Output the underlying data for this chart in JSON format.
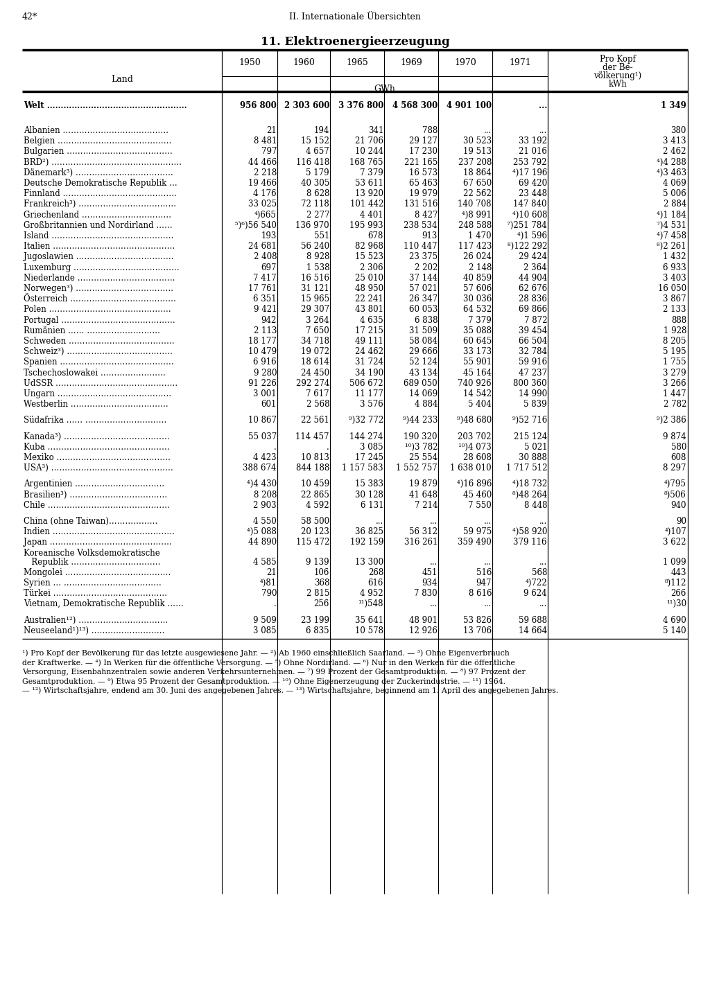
{
  "page_number": "42*",
  "section_header": "II. Internationale Übersichten",
  "title": "11. Elektroenergieerzeugung",
  "footnotes": [
    "¹) Pro Kopf der Bevölkerung für das letzte ausgewiesene Jahr. — ²) Ab 1960 einschließlich Saarland. — ³) Ohne Eigenverbrauch",
    "der Kraftwerke. — ⁴) In Werken für die öffentliche Versorgung. — ⁵) Ohne Nordirland. — ⁶) Nur in den Werken für die öffentliche",
    "Versorgung, Eisenbahnzentralen sowie anderen Verkehrsunternehmen. — ⁷) 99 Prozent der Gesamtproduktion. — ⁸) 97 Prozent der",
    "Gesamtproduktion. — ⁹) Etwa 95 Prozent der Gesamtproduktion. — ¹⁰) Ohne Eigenerzeugung der Zuckerindustrie. — ¹¹) 1964.",
    "— ¹²) Wirtschaftsjahre, endend am 30. Juni des angegebenen Jahres. — ¹³) Wirtschaftsjahre, beginnend am 1. April des angegebenen Jahres."
  ],
  "rows": [
    {
      "land": "Welt ……………………………………………",
      "v1950": "956 800",
      "v1960": "2 303 600",
      "v1965": "3 376 800",
      "v1969": "4 568 300",
      "v1970": "4 901 100",
      "v1971": "...",
      "vkopf": "1 349",
      "bold": true,
      "sep_before": false,
      "sep_after": true
    },
    {
      "land": "Albanien …………………………………",
      "v1950": "21",
      "v1960": "194",
      "v1965": "341",
      "v1969": "788",
      "v1970": "...",
      "v1971": "...",
      "vkopf": "380",
      "bold": false,
      "sep_before": false,
      "sep_after": false
    },
    {
      "land": "Belgien ……………………………………",
      "v1950": "8 481",
      "v1960": "15 152",
      "v1965": "21 706",
      "v1969": "29 127",
      "v1970": "30 523",
      "v1971": "33 192",
      "vkopf": "3 413",
      "bold": false,
      "sep_before": false,
      "sep_after": false
    },
    {
      "land": "Bulgarien …………………………………",
      "v1950": "797",
      "v1960": "4 657",
      "v1965": "10 244",
      "v1969": "17 230",
      "v1970": "19 513",
      "v1971": "21 016",
      "vkopf": "2 462",
      "bold": false,
      "sep_before": false,
      "sep_after": false
    },
    {
      "land": "BRD²) …………………………………………",
      "v1950": "44 466",
      "v1960": "116 418",
      "v1965": "168 765",
      "v1969": "221 165",
      "v1970": "237 208",
      "v1971": "253 792",
      "vkopf": "⁴)4 288",
      "bold": false,
      "sep_before": false,
      "sep_after": false
    },
    {
      "land": "Dänemark³) ………………………………",
      "v1950": "2 218",
      "v1960": "5 179",
      "v1965": "7 379",
      "v1969": "16 573",
      "v1970": "18 864",
      "v1971": "⁴)17 196",
      "vkopf": "⁴)3 463",
      "bold": false,
      "sep_before": false,
      "sep_after": false
    },
    {
      "land": "Deutsche Demokratische Republik …",
      "v1950": "19 466",
      "v1960": "40 305",
      "v1965": "53 611",
      "v1969": "65 463",
      "v1970": "67 650",
      "v1971": "69 420",
      "vkopf": "4 069",
      "bold": false,
      "sep_before": false,
      "sep_after": false
    },
    {
      "land": "Finnland ……………………………………",
      "v1950": "4 176",
      "v1960": "8 628",
      "v1965": "13 920",
      "v1969": "19 979",
      "v1970": "22 562",
      "v1971": "23 448",
      "vkopf": "5 006",
      "bold": false,
      "sep_before": false,
      "sep_after": false
    },
    {
      "land": "Frankreich³) ………………………………",
      "v1950": "33 025",
      "v1960": "72 118",
      "v1965": "101 442",
      "v1969": "131 516",
      "v1970": "140 708",
      "v1971": "147 840",
      "vkopf": "2 884",
      "bold": false,
      "sep_before": false,
      "sep_after": false
    },
    {
      "land": "Griechenland ……………………………",
      "v1950": "⁴)665",
      "v1960": "2 277",
      "v1965": "4 401",
      "v1969": "8 427",
      "v1970": "⁴)8 991",
      "v1971": "⁴)10 608",
      "vkopf": "⁴)1 184",
      "bold": false,
      "sep_before": false,
      "sep_after": false
    },
    {
      "land": "Großbritannien und Nordirland ……",
      "v1950": "⁵)⁶)56 540",
      "v1960": "136 970",
      "v1965": "195 993",
      "v1969": "238 534",
      "v1970": "248 588",
      "v1971": "⁷)251 784",
      "vkopf": "⁷)4 531",
      "bold": false,
      "sep_before": false,
      "sep_after": false
    },
    {
      "land": "Island ………………………………………",
      "v1950": "193",
      "v1960": "551",
      "v1965": "678",
      "v1969": "913",
      "v1970": "1 470",
      "v1971": "⁴)1 596",
      "vkopf": "⁴)7 458",
      "bold": false,
      "sep_before": false,
      "sep_after": false
    },
    {
      "land": "Italien ………………………………………",
      "v1950": "24 681",
      "v1960": "56 240",
      "v1965": "82 968",
      "v1969": "110 447",
      "v1970": "117 423",
      "v1971": "⁸)122 292",
      "vkopf": "⁸)2 261",
      "bold": false,
      "sep_before": false,
      "sep_after": false
    },
    {
      "land": "Jugoslawien ………………………………",
      "v1950": "2 408",
      "v1960": "8 928",
      "v1965": "15 523",
      "v1969": "23 375",
      "v1970": "26 024",
      "v1971": "29 424",
      "vkopf": "1 432",
      "bold": false,
      "sep_before": false,
      "sep_after": false
    },
    {
      "land": "Luxemburg …………………………………",
      "v1950": "697",
      "v1960": "1 538",
      "v1965": "2 306",
      "v1969": "2 202",
      "v1970": "2 148",
      "v1971": "2 364",
      "vkopf": "6 933",
      "bold": false,
      "sep_before": false,
      "sep_after": false
    },
    {
      "land": "Niederlande ………………………………",
      "v1950": "7 417",
      "v1960": "16 516",
      "v1965": "25 010",
      "v1969": "37 144",
      "v1970": "40 859",
      "v1971": "44 904",
      "vkopf": "3 403",
      "bold": false,
      "sep_before": false,
      "sep_after": false
    },
    {
      "land": "Norwegen³) ………………………………",
      "v1950": "17 761",
      "v1960": "31 121",
      "v1965": "48 950",
      "v1969": "57 021",
      "v1970": "57 606",
      "v1971": "62 676",
      "vkopf": "16 050",
      "bold": false,
      "sep_before": false,
      "sep_after": false
    },
    {
      "land": "Österreich …………………………………",
      "v1950": "6 351",
      "v1960": "15 965",
      "v1965": "22 241",
      "v1969": "26 347",
      "v1970": "30 036",
      "v1971": "28 836",
      "vkopf": "3 867",
      "bold": false,
      "sep_before": false,
      "sep_after": false
    },
    {
      "land": "Polen ………………………………………",
      "v1950": "9 421",
      "v1960": "29 307",
      "v1965": "43 801",
      "v1969": "60 053",
      "v1970": "64 532",
      "v1971": "69 866",
      "vkopf": "2 133",
      "bold": false,
      "sep_before": false,
      "sep_after": false
    },
    {
      "land": "Portugal ……………………………………",
      "v1950": "942",
      "v1960": "3 264",
      "v1965": "4 635",
      "v1969": "6 838",
      "v1970": "7 379",
      "v1971": "7 872",
      "vkopf": "888",
      "bold": false,
      "sep_before": false,
      "sep_after": false
    },
    {
      "land": "Rumänien …… ………………………",
      "v1950": "2 113",
      "v1960": "7 650",
      "v1965": "17 215",
      "v1969": "31 509",
      "v1970": "35 088",
      "v1971": "39 454",
      "vkopf": "1 928",
      "bold": false,
      "sep_before": false,
      "sep_after": false
    },
    {
      "land": "Schweden …………………………………",
      "v1950": "18 177",
      "v1960": "34 718",
      "v1965": "49 111",
      "v1969": "58 084",
      "v1970": "60 645",
      "v1971": "66 504",
      "vkopf": "8 205",
      "bold": false,
      "sep_before": false,
      "sep_after": false
    },
    {
      "land": "Schweiz³) …………………………………",
      "v1950": "10 479",
      "v1960": "19 072",
      "v1965": "24 462",
      "v1969": "29 666",
      "v1970": "33 173",
      "v1971": "32 784",
      "vkopf": "5 195",
      "bold": false,
      "sep_before": false,
      "sep_after": false
    },
    {
      "land": "Spanien ……………………………………",
      "v1950": "6 916",
      "v1960": "18 614",
      "v1965": "31 724",
      "v1969": "52 124",
      "v1970": "55 901",
      "v1971": "59 916",
      "vkopf": "1 755",
      "bold": false,
      "sep_before": false,
      "sep_after": false
    },
    {
      "land": "Tschechoslowakei ……………………",
      "v1950": "9 280",
      "v1960": "24 450",
      "v1965": "34 190",
      "v1969": "43 134",
      "v1970": "45 164",
      "v1971": "47 237",
      "vkopf": "3 279",
      "bold": false,
      "sep_before": false,
      "sep_after": false
    },
    {
      "land": "UdSSR ………………………………………",
      "v1950": "91 226",
      "v1960": "292 274",
      "v1965": "506 672",
      "v1969": "689 050",
      "v1970": "740 926",
      "v1971": "800 360",
      "vkopf": "3 266",
      "bold": false,
      "sep_before": false,
      "sep_after": false
    },
    {
      "land": "Ungarn ……………………………………",
      "v1950": "3 001",
      "v1960": "7 617",
      "v1965": "11 177",
      "v1969": "14 069",
      "v1970": "14 542",
      "v1971": "14 990",
      "vkopf": "1 447",
      "bold": false,
      "sep_before": false,
      "sep_after": false
    },
    {
      "land": "Westberlin ………………………………",
      "v1950": "601",
      "v1960": "2 568",
      "v1965": "3 576",
      "v1969": "4 884",
      "v1970": "5 404",
      "v1971": "5 839",
      "vkopf": "2 782",
      "bold": false,
      "sep_before": false,
      "sep_after": true
    },
    {
      "land": "Südafrika …… …………………………",
      "v1950": "10 867",
      "v1960": "22 561",
      "v1965": "⁹)32 772",
      "v1969": "⁹)44 233",
      "v1970": "⁹)48 680",
      "v1971": "⁹)52 716",
      "vkopf": "⁹)2 386",
      "bold": false,
      "sep_before": false,
      "sep_after": true
    },
    {
      "land": "Kanada³) …………………………………",
      "v1950": "55 037",
      "v1960": "114 457",
      "v1965": "144 274",
      "v1969": "190 320",
      "v1970": "203 702",
      "v1971": "215 124",
      "vkopf": "9 874",
      "bold": false,
      "sep_before": false,
      "sep_after": false
    },
    {
      "land": "Kuba ………………………………………",
      "v1950": ".",
      "v1960": ".",
      "v1965": "3 085",
      "v1969": "¹⁰)3 782",
      "v1970": "¹⁰)4 073",
      "v1971": "5 021",
      "vkopf": "580",
      "bold": false,
      "sep_before": false,
      "sep_after": false
    },
    {
      "land": "Mexiko ……………………………………",
      "v1950": "4 423",
      "v1960": "10 813",
      "v1965": "17 245",
      "v1969": "25 554",
      "v1970": "28 608",
      "v1971": "30 888",
      "vkopf": "608",
      "bold": false,
      "sep_before": false,
      "sep_after": false
    },
    {
      "land": "USA³) ………………………………………",
      "v1950": "388 674",
      "v1960": "844 188",
      "v1965": "1 157 583",
      "v1969": "1 552 757",
      "v1970": "1 638 010",
      "v1971": "1 717 512",
      "vkopf": "8 297",
      "bold": false,
      "sep_before": false,
      "sep_after": true
    },
    {
      "land": "Argentinien ……………………………",
      "v1950": "⁴)4 430",
      "v1960": "10 459",
      "v1965": "15 383",
      "v1969": "19 879",
      "v1970": "⁴)16 896",
      "v1971": "⁴)18 732",
      "vkopf": "⁴)795",
      "bold": false,
      "sep_before": false,
      "sep_after": false
    },
    {
      "land": "Brasilien³) ………………………………",
      "v1950": "8 208",
      "v1960": "22 865",
      "v1965": "30 128",
      "v1969": "41 648",
      "v1970": "45 460",
      "v1971": "⁸)48 264",
      "vkopf": "⁸)506",
      "bold": false,
      "sep_before": false,
      "sep_after": false
    },
    {
      "land": "Chile ………………………………………",
      "v1950": "2 903",
      "v1960": "4 592",
      "v1965": "6 131",
      "v1969": "7 214",
      "v1970": "7 550",
      "v1971": "8 448",
      "vkopf": "940",
      "bold": false,
      "sep_before": false,
      "sep_after": true
    },
    {
      "land": "China (ohne Taiwan)………………",
      "v1950": "4 550",
      "v1960": "58 500",
      "v1965": "...",
      "v1969": "...",
      "v1970": "...",
      "v1971": "...",
      "vkopf": "90",
      "bold": false,
      "sep_before": false,
      "sep_after": false
    },
    {
      "land": "Indien ………………………………………",
      "v1950": "⁴)5 088",
      "v1960": "20 123",
      "v1965": "36 825",
      "v1969": "56 312",
      "v1970": "59 975",
      "v1971": "⁴)58 920",
      "vkopf": "⁴)107",
      "bold": false,
      "sep_before": false,
      "sep_after": false
    },
    {
      "land": "Japan ………………………………………",
      "v1950": "44 890",
      "v1960": "115 472",
      "v1965": "192 159",
      "v1969": "316 261",
      "v1970": "359 490",
      "v1971": "379 116",
      "vkopf": "3 622",
      "bold": false,
      "sep_before": false,
      "sep_after": false
    },
    {
      "land": "Koreanische Volksdemokratische",
      "v1950": "",
      "v1960": "",
      "v1965": "",
      "v1969": "",
      "v1970": "",
      "v1971": "",
      "vkopf": "",
      "bold": false,
      "sep_before": false,
      "sep_after": false,
      "multiline": true
    },
    {
      "land": "   Republik ……………………………",
      "v1950": "4 585",
      "v1960": "9 139",
      "v1965": "13 300",
      "v1969": "...",
      "v1970": "...",
      "v1971": "...",
      "vkopf": "1 099",
      "bold": false,
      "sep_before": false,
      "sep_after": false
    },
    {
      "land": "Mongolei …………………………………",
      "v1950": "21",
      "v1960": "106",
      "v1965": "268",
      "v1969": "451",
      "v1970": "516",
      "v1971": "568",
      "vkopf": "443",
      "bold": false,
      "sep_before": false,
      "sep_after": false
    },
    {
      "land": "Syrien … ………………………………",
      "v1950": "⁴)81",
      "v1960": "368",
      "v1965": "616",
      "v1969": "934",
      "v1970": "947",
      "v1971": "⁴)722",
      "vkopf": "⁸)112",
      "bold": false,
      "sep_before": false,
      "sep_after": false
    },
    {
      "land": "Türkei ……………………………………",
      "v1950": "790",
      "v1960": "2 815",
      "v1965": "4 952",
      "v1969": "7 830",
      "v1970": "8 616",
      "v1971": "9 624",
      "vkopf": "266",
      "bold": false,
      "sep_before": false,
      "sep_after": false
    },
    {
      "land": "Vietnam, Demokratische Republik ……",
      "v1950": ".",
      "v1960": "256",
      "v1965": "¹¹)548",
      "v1969": "...",
      "v1970": "...",
      "v1971": "...",
      "vkopf": "¹¹)30",
      "bold": false,
      "sep_before": false,
      "sep_after": true
    },
    {
      "land": "Australien¹²) ……………………………",
      "v1950": "9 509",
      "v1960": "23 199",
      "v1965": "35 641",
      "v1969": "48 901",
      "v1970": "53 826",
      "v1971": "59 688",
      "vkopf": "4 690",
      "bold": false,
      "sep_before": false,
      "sep_after": false
    },
    {
      "land": "Neuseeland¹)¹³) ………………………",
      "v1950": "3 085",
      "v1960": "6 835",
      "v1965": "10 578",
      "v1969": "12 926",
      "v1970": "13 706",
      "v1971": "14 664",
      "vkopf": "5 140",
      "bold": false,
      "sep_before": false,
      "sep_after": false
    }
  ]
}
